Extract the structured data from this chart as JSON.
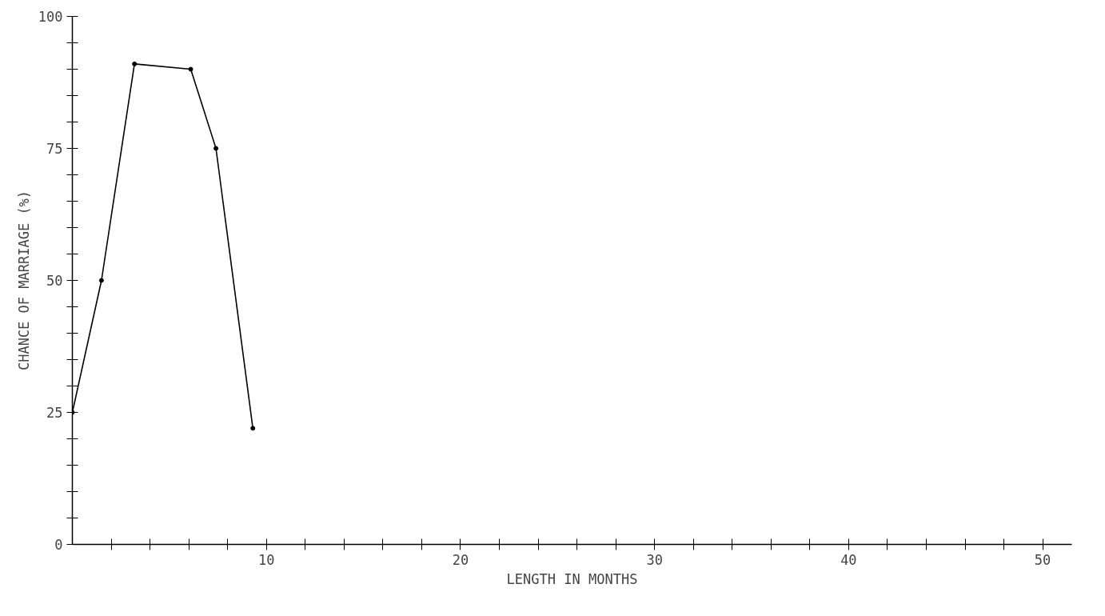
{
  "chart_data": {
    "type": "line",
    "xlabel": "LENGTH IN MONTHS",
    "ylabel": "CHANCE OF MARRIAGE (%)",
    "x": [
      0,
      1.5,
      3.2,
      6.1,
      7.4,
      9.3
    ],
    "series": [
      {
        "color": "#000000",
        "values": [
          25,
          50,
          91,
          90,
          75,
          22
        ]
      }
    ],
    "xlim": [
      0,
      51.5
    ],
    "ylim": [
      0,
      100
    ],
    "xticks": [
      {
        "value": 2,
        "label": null
      },
      {
        "value": 4,
        "label": null
      },
      {
        "value": 6,
        "label": null
      },
      {
        "value": 8,
        "label": null
      },
      10,
      {
        "value": 12,
        "label": null
      },
      {
        "value": 14,
        "label": null
      },
      {
        "value": 16,
        "label": null
      },
      {
        "value": 18,
        "label": null
      },
      20,
      {
        "value": 22,
        "label": null
      },
      {
        "value": 24,
        "label": null
      },
      {
        "value": 26,
        "label": null
      },
      {
        "value": 28,
        "label": null
      },
      30,
      {
        "value": 32,
        "label": null
      },
      {
        "value": 34,
        "label": null
      },
      {
        "value": 36,
        "label": null
      },
      {
        "value": 38,
        "label": null
      },
      40,
      {
        "value": 42,
        "label": null
      },
      {
        "value": 44,
        "label": null
      },
      {
        "value": 46,
        "label": null
      },
      {
        "value": 48,
        "label": null
      },
      50
    ],
    "yticks": [
      0,
      {
        "value": 5,
        "label": null
      },
      {
        "value": 10,
        "label": null
      },
      {
        "value": 15,
        "label": null
      },
      {
        "value": 20,
        "label": null
      },
      25,
      {
        "value": 30,
        "label": null
      },
      {
        "value": 35,
        "label": null
      },
      {
        "value": 40,
        "label": null
      },
      {
        "value": 45,
        "label": null
      },
      50,
      {
        "value": 55,
        "label": null
      },
      {
        "value": 60,
        "label": null
      },
      {
        "value": 65,
        "label": null
      },
      {
        "value": 70,
        "label": null
      },
      75,
      {
        "value": 80,
        "label": null
      },
      {
        "value": 85,
        "label": null
      },
      {
        "value": 90,
        "label": null
      },
      {
        "value": 95,
        "label": null
      },
      100
    ],
    "grid": false,
    "marker": "circle",
    "line_style": "solid"
  }
}
